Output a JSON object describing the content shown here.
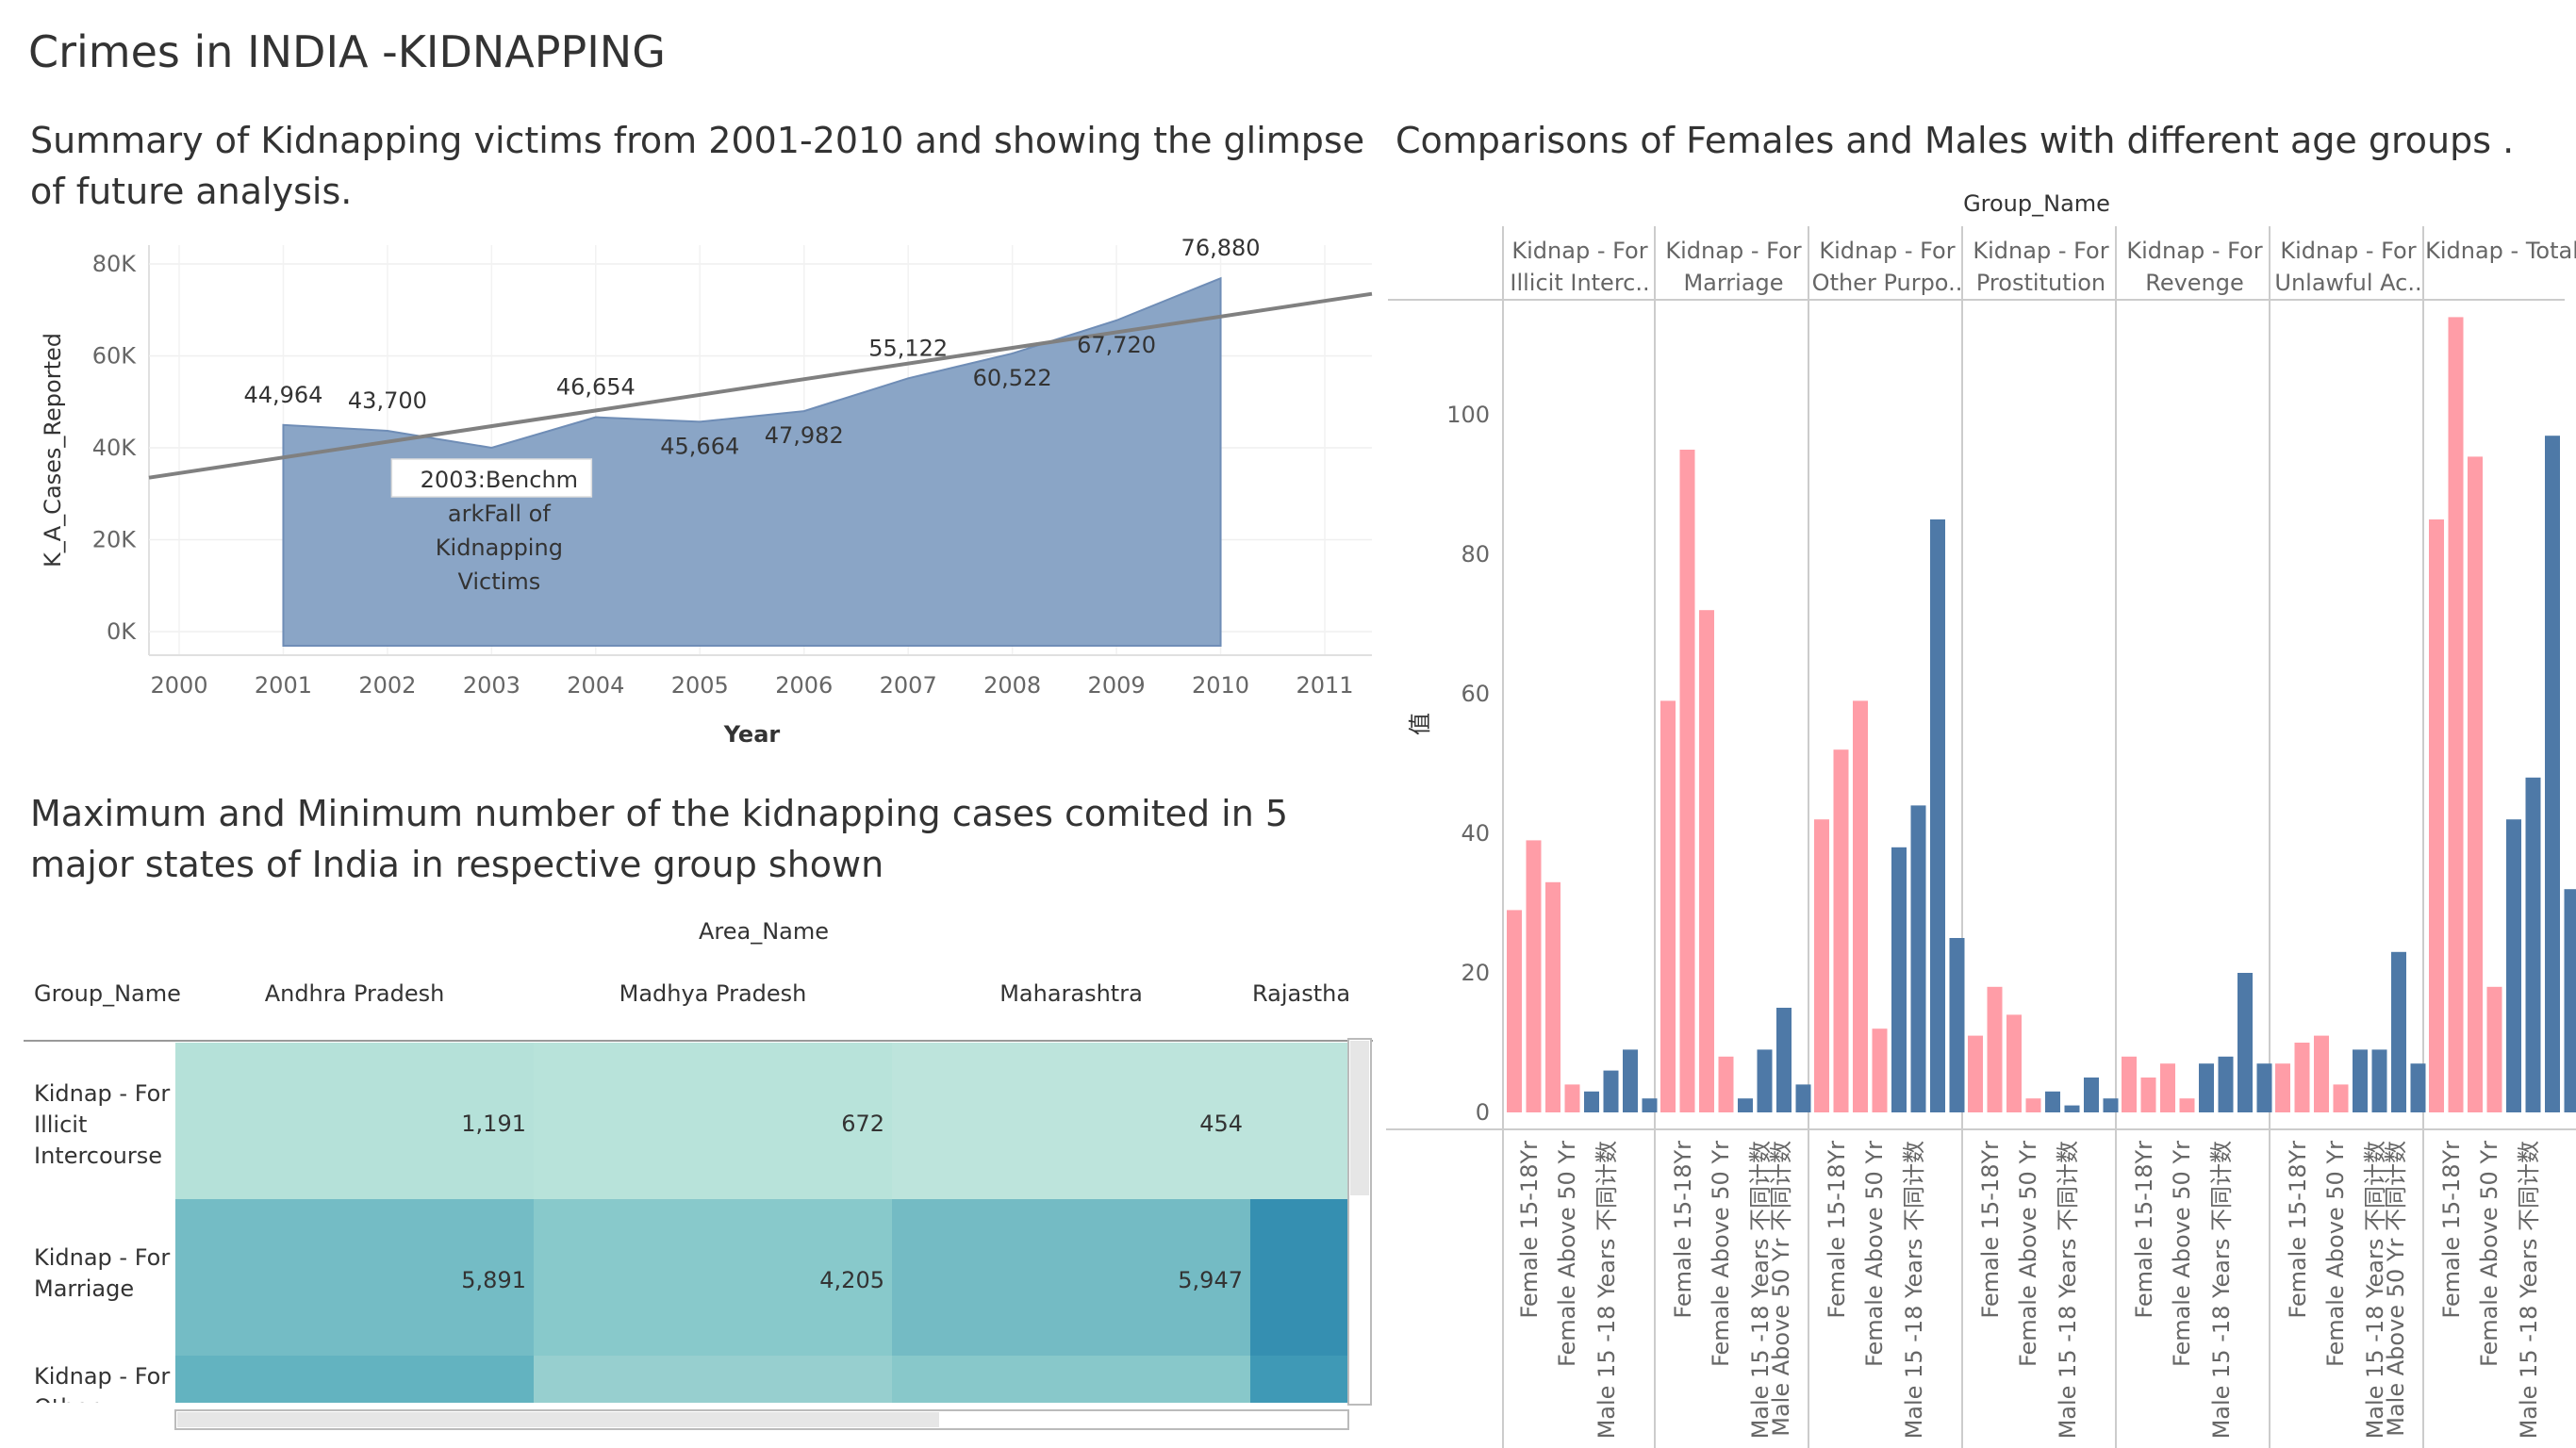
{
  "dashboard_title": "Crimes in INDIA -KIDNAPPING",
  "area_section": {
    "title_line1": "Summary of Kidnapping victims from 2001-2010 and showing the glimpse",
    "title_line2": "of future analysis."
  },
  "table_section": {
    "title_line1": "Maximum and Minimum number of the kidnapping cases comited in 5",
    "title_line2": "major states of India in respective group shown"
  },
  "bar_section": {
    "title": "Comparisons of Females and Males with different age groups ."
  },
  "chart_data": [
    {
      "type": "area",
      "xlabel": "Year",
      "ylabel": "K_A_Cases_Reported",
      "ylim": [
        0,
        80000
      ],
      "y_ticks": [
        "0K",
        "20K",
        "40K",
        "60K",
        "80K"
      ],
      "x_ticks": [
        "2000",
        "2001",
        "2002",
        "2003",
        "2004",
        "2005",
        "2006",
        "2007",
        "2008",
        "2009",
        "2010",
        "2011"
      ],
      "x": [
        2001,
        2002,
        2003,
        2004,
        2005,
        2006,
        2007,
        2008,
        2009,
        2010
      ],
      "values": [
        44964,
        43700,
        40000,
        46654,
        45664,
        47982,
        55122,
        60522,
        67720,
        76880
      ],
      "data_labels": [
        "44,964",
        "43,700",
        "",
        "46,654",
        "45,664",
        "47,982",
        "55,122",
        "60,522",
        "67,720",
        "76,880"
      ],
      "trend_line": {
        "x": [
          2000,
          2011
        ],
        "y": [
          33500,
          73500
        ]
      },
      "annotation": {
        "line1": "2003:Benchm",
        "line2": "arkFall of",
        "line3": "Kidnapping",
        "line4": "Victims"
      },
      "color": "#8aa5c6"
    },
    {
      "type": "table",
      "column_header": "Area_Name",
      "row_header": "Group_Name",
      "columns": [
        "Andhra Pradesh",
        "Madhya Pradesh",
        "Maharashtra",
        "Rajastha"
      ],
      "rows": [
        {
          "label_lines": [
            "Kidnap - For",
            "Illicit",
            "Intercourse"
          ],
          "values": [
            "1,191",
            "672",
            "454",
            ""
          ],
          "colors": [
            "#b5e1d9",
            "#b8e3da",
            "#bde4dc",
            "#bde4dc"
          ]
        },
        {
          "label_lines": [
            "Kidnap - For",
            "Marriage"
          ],
          "values": [
            "5,891",
            "4,205",
            "5,947",
            ""
          ],
          "colors": [
            "#74bcc5",
            "#88c9cb",
            "#74bbc4",
            "#358fb1"
          ]
        },
        {
          "label_lines": [
            "Kidnap - For",
            "Other"
          ],
          "values": [
            "",
            "",
            "",
            ""
          ],
          "colors": [
            "#63b3c0",
            "#97cfcf",
            "#88c8ca",
            "#3f99b6"
          ]
        }
      ]
    },
    {
      "type": "bar",
      "header": "Group_Name",
      "ylabel": "值",
      "ylim": [
        0,
        120
      ],
      "y_ticks": [
        "0",
        "20",
        "40",
        "60",
        "80",
        "100"
      ],
      "bar_colors": {
        "female": "#ff9da7",
        "male": "#4e79a7"
      },
      "groups": [
        {
          "line1": "Kidnap - For",
          "line2": "Illicit Interc..",
          "categories": [
            "Female 15-18Yr",
            "Female Above 50 Yr",
            "Male 15 -18 Years 不同计数"
          ],
          "bars": [
            {
              "v": 29,
              "g": "female"
            },
            {
              "v": 39,
              "g": "female"
            },
            {
              "v": 33,
              "g": "female"
            },
            {
              "v": 4,
              "g": "female"
            },
            {
              "v": 3,
              "g": "male"
            },
            {
              "v": 6,
              "g": "male"
            },
            {
              "v": 9,
              "g": "male"
            },
            {
              "v": 2,
              "g": "male"
            }
          ]
        },
        {
          "line1": "Kidnap - For",
          "line2": "Marriage",
          "categories": [
            "Female 15-18Yr",
            "Female Above 50 Yr",
            "Male 15 -18 Years 不同计数",
            "Male Above 50 Yr 不同计数"
          ],
          "bars": [
            {
              "v": 59,
              "g": "female"
            },
            {
              "v": 95,
              "g": "female"
            },
            {
              "v": 72,
              "g": "female"
            },
            {
              "v": 8,
              "g": "female"
            },
            {
              "v": 2,
              "g": "male"
            },
            {
              "v": 9,
              "g": "male"
            },
            {
              "v": 15,
              "g": "male"
            },
            {
              "v": 4,
              "g": "male"
            }
          ]
        },
        {
          "line1": "Kidnap - For",
          "line2": "Other Purpo..",
          "categories": [
            "Female 15-18Yr",
            "Female Above 50 Yr",
            "Male 15 -18 Years 不同计数"
          ],
          "bars": [
            {
              "v": 42,
              "g": "female"
            },
            {
              "v": 52,
              "g": "female"
            },
            {
              "v": 59,
              "g": "female"
            },
            {
              "v": 12,
              "g": "female"
            },
            {
              "v": 38,
              "g": "male"
            },
            {
              "v": 44,
              "g": "male"
            },
            {
              "v": 85,
              "g": "male"
            },
            {
              "v": 25,
              "g": "male"
            }
          ]
        },
        {
          "line1": "Kidnap - For",
          "line2": "Prostitution",
          "categories": [
            "Female 15-18Yr",
            "Female Above 50 Yr",
            "Male 15 -18 Years 不同计数"
          ],
          "bars": [
            {
              "v": 11,
              "g": "female"
            },
            {
              "v": 18,
              "g": "female"
            },
            {
              "v": 14,
              "g": "female"
            },
            {
              "v": 2,
              "g": "female"
            },
            {
              "v": 3,
              "g": "male"
            },
            {
              "v": 1,
              "g": "male"
            },
            {
              "v": 5,
              "g": "male"
            },
            {
              "v": 2,
              "g": "male"
            }
          ]
        },
        {
          "line1": "Kidnap - For",
          "line2": "Revenge",
          "categories": [
            "Female 15-18Yr",
            "Female Above 50 Yr",
            "Male 15 -18 Years 不同计数"
          ],
          "bars": [
            {
              "v": 8,
              "g": "female"
            },
            {
              "v": 5,
              "g": "female"
            },
            {
              "v": 7,
              "g": "female"
            },
            {
              "v": 2,
              "g": "female"
            },
            {
              "v": 7,
              "g": "male"
            },
            {
              "v": 8,
              "g": "male"
            },
            {
              "v": 20,
              "g": "male"
            },
            {
              "v": 7,
              "g": "male"
            }
          ]
        },
        {
          "line1": "Kidnap - For",
          "line2": "Unlawful Ac..",
          "categories": [
            "Female 15-18Yr",
            "Female Above 50 Yr",
            "Male 15 -18 Years 不同计数",
            "Male Above 50 Yr 不同计数"
          ],
          "bars": [
            {
              "v": 7,
              "g": "female"
            },
            {
              "v": 10,
              "g": "female"
            },
            {
              "v": 11,
              "g": "female"
            },
            {
              "v": 4,
              "g": "female"
            },
            {
              "v": 9,
              "g": "male"
            },
            {
              "v": 9,
              "g": "male"
            },
            {
              "v": 23,
              "g": "male"
            },
            {
              "v": 7,
              "g": "male"
            }
          ]
        },
        {
          "line1": "Kidnap - Total",
          "line2": "",
          "categories": [
            "Female 15-18Yr",
            "Female Above 50 Yr",
            "Male 15 -18 Years 不同计数"
          ],
          "bars": [
            {
              "v": 85,
              "g": "female"
            },
            {
              "v": 114,
              "g": "female"
            },
            {
              "v": 94,
              "g": "female"
            },
            {
              "v": 18,
              "g": "female"
            },
            {
              "v": 42,
              "g": "male"
            },
            {
              "v": 48,
              "g": "male"
            },
            {
              "v": 97,
              "g": "male"
            },
            {
              "v": 32,
              "g": "male"
            }
          ]
        }
      ]
    }
  ]
}
